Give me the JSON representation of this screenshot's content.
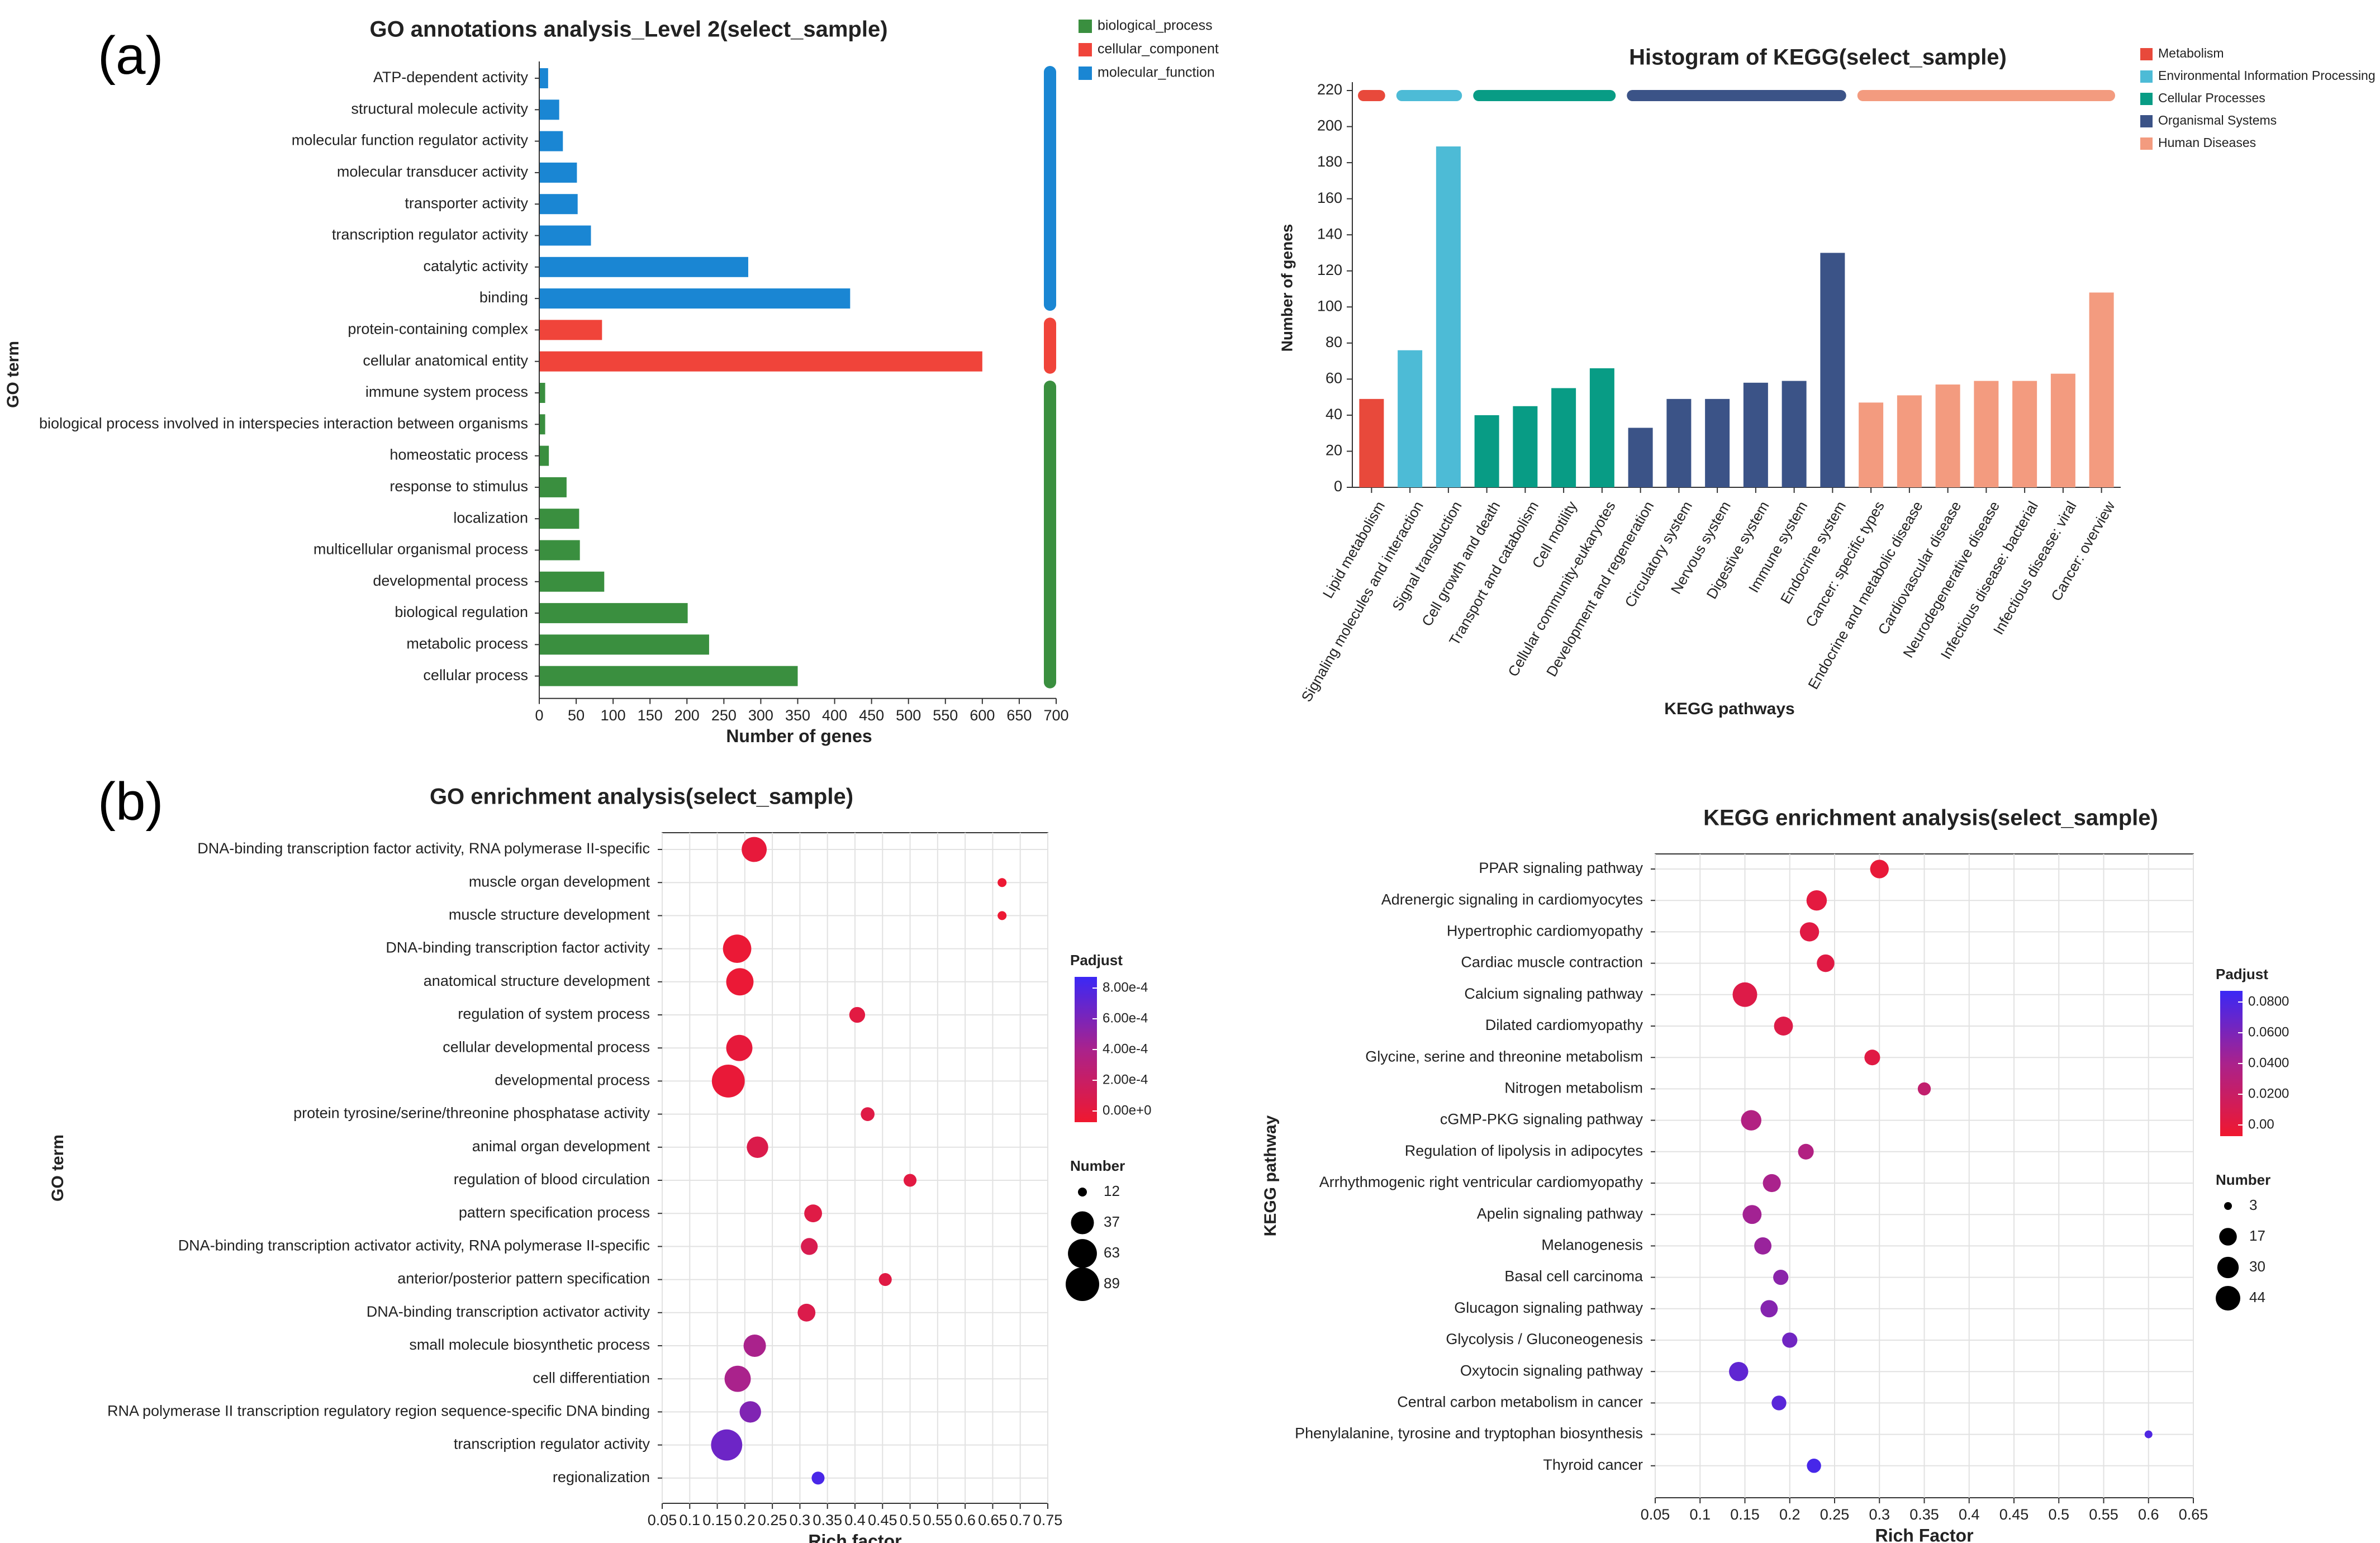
{
  "panel_labels": {
    "a": "(a)",
    "b": "(b)"
  },
  "chart_data": [
    {
      "type": "bar",
      "orientation": "horizontal",
      "title": "GO annotations analysis_Level 2(select_sample)",
      "xlabel": "Number of genes",
      "ylabel": "GO term",
      "xlim": [
        0,
        700
      ],
      "xticks": [
        0,
        50,
        100,
        150,
        200,
        250,
        300,
        350,
        400,
        450,
        500,
        550,
        600,
        650,
        700
      ],
      "legend": [
        {
          "name": "biological_process",
          "color": "#3a8f3f"
        },
        {
          "name": "cellular_component",
          "color": "#f0443a"
        },
        {
          "name": "molecular_function",
          "color": "#1a86d3"
        }
      ],
      "categories": [
        "ATP-dependent activity",
        "structural molecule activity",
        "molecular function regulator activity",
        "molecular transducer activity",
        "transporter activity",
        "transcription regulator activity",
        "catalytic activity",
        "binding",
        "protein-containing complex",
        "cellular anatomical entity",
        "immune system process",
        "biological process involved in interspecies interaction between organisms",
        "homeostatic process",
        "response to stimulus",
        "localization",
        "multicellular organismal process",
        "developmental process",
        "biological regulation",
        "metabolic process",
        "cellular process"
      ],
      "values": [
        12,
        27,
        32,
        51,
        52,
        70,
        283,
        421,
        85,
        600,
        8,
        8,
        13,
        37,
        54,
        55,
        88,
        201,
        230,
        350
      ],
      "groups": [
        "molecular_function",
        "molecular_function",
        "molecular_function",
        "molecular_function",
        "molecular_function",
        "molecular_function",
        "molecular_function",
        "molecular_function",
        "cellular_component",
        "cellular_component",
        "biological_process",
        "biological_process",
        "biological_process",
        "biological_process",
        "biological_process",
        "biological_process",
        "biological_process",
        "biological_process",
        "biological_process",
        "biological_process"
      ]
    },
    {
      "type": "bar",
      "title": "Histogram of KEGG(select_sample)",
      "xlabel": "KEGG pathways",
      "ylabel": "Number of genes",
      "ylim": [
        0,
        220
      ],
      "yticks": [
        0,
        20,
        40,
        60,
        80,
        100,
        120,
        140,
        160,
        180,
        200,
        220
      ],
      "legend": [
        {
          "name": "Metabolism",
          "color": "#e8493b"
        },
        {
          "name": "Environmental Information Processing",
          "color": "#4dbbd6"
        },
        {
          "name": "Cellular Processes",
          "color": "#089c85"
        },
        {
          "name": "Organismal Systems",
          "color": "#3b5387"
        },
        {
          "name": "Human Diseases",
          "color": "#f39b7f"
        }
      ],
      "categories": [
        "Lipid metabolism",
        "Signaling molecules and interaction",
        "Signal transduction",
        "Cell growth and death",
        "Transport and catabolism",
        "Cell motility",
        "Cellular community-eukaryotes",
        "Development and regeneration",
        "Circulatory system",
        "Nervous system",
        "Digestive system",
        "Immune system",
        "Endocrine system",
        "Cancer: specific types",
        "Endocrine and metabolic disease",
        "Cardiovascular disease",
        "Neurodegenerative disease",
        "Infectious disease: bacterial",
        "Infectious disease: viral",
        "Cancer: overview"
      ],
      "values": [
        49,
        76,
        189,
        40,
        45,
        55,
        66,
        33,
        49,
        49,
        58,
        59,
        130,
        47,
        51,
        57,
        59,
        59,
        63,
        108
      ],
      "groups": [
        "Metabolism",
        "Environmental Information Processing",
        "Environmental Information Processing",
        "Cellular Processes",
        "Cellular Processes",
        "Cellular Processes",
        "Cellular Processes",
        "Organismal Systems",
        "Organismal Systems",
        "Organismal Systems",
        "Organismal Systems",
        "Organismal Systems",
        "Organismal Systems",
        "Human Diseases",
        "Human Diseases",
        "Human Diseases",
        "Human Diseases",
        "Human Diseases",
        "Human Diseases",
        "Human Diseases"
      ]
    },
    {
      "type": "scatter",
      "title": "GO enrichment analysis(select_sample)",
      "xlabel": "Rich factor",
      "ylabel": "GO term",
      "xlim": [
        0.05,
        0.75
      ],
      "xticks": [
        "0.05",
        "0.1",
        "0.15",
        "0.2",
        "0.25",
        "0.3",
        "0.35",
        "0.4",
        "0.45",
        "0.5",
        "0.55",
        "0.6",
        "0.65",
        "0.7",
        "0.75"
      ],
      "color_legend": {
        "title": "Padjust",
        "ticks": [
          "8.00e-4",
          "6.00e-4",
          "4.00e-4",
          "2.00e-4",
          "0.00e+0"
        ],
        "min": 0,
        "max": 0.0008
      },
      "size_legend": {
        "title": "Number",
        "values": [
          "12",
          "37",
          "63",
          "89"
        ]
      },
      "categories": [
        "DNA-binding transcription factor activity, RNA polymerase II-specific",
        "muscle organ development",
        "muscle structure development",
        "DNA-binding transcription factor activity",
        "anatomical structure development",
        "regulation of system process",
        "cellular developmental process",
        "developmental process",
        "protein tyrosine/serine/threonine phosphatase activity",
        "animal organ development",
        "regulation of blood circulation",
        "pattern specification process",
        "DNA-binding transcription activator activity, RNA polymerase II-specific",
        "anterior/posterior pattern specification",
        "DNA-binding transcription activator activity",
        "small molecule biosynthetic process",
        "cell differentiation",
        "RNA polymerase II transcription regulatory region sequence-specific DNA binding",
        "transcription regulator activity",
        "regionalization"
      ],
      "x": [
        0.217,
        0.667,
        0.667,
        0.186,
        0.191,
        0.404,
        0.19,
        0.17,
        0.423,
        0.223,
        0.5,
        0.324,
        0.317,
        0.455,
        0.312,
        0.218,
        0.187,
        0.21,
        0.167,
        0.333
      ],
      "sizes": [
        45,
        12,
        12,
        60,
        55,
        18,
        50,
        85,
        15,
        32,
        14,
        22,
        20,
        14,
        22,
        35,
        50,
        32,
        75,
        14
      ],
      "padjust": [
        5e-05,
        2e-05,
        2e-05,
        3e-05,
        3e-05,
        8e-05,
        5e-05,
        4e-05,
        0.0001,
        0.00012,
        8e-05,
        0.0001,
        0.00014,
        9e-05,
        0.00012,
        0.0004,
        0.0004,
        0.00055,
        0.00062,
        0.00075
      ]
    },
    {
      "type": "scatter",
      "title": "KEGG enrichment analysis(select_sample)",
      "xlabel": "Rich Factor",
      "ylabel": "KEGG pathway",
      "xlim": [
        0.05,
        0.65
      ],
      "xticks": [
        "0.05",
        "0.1",
        "0.15",
        "0.2",
        "0.25",
        "0.3",
        "0.35",
        "0.4",
        "0.45",
        "0.5",
        "0.55",
        "0.6",
        "0.65"
      ],
      "color_legend": {
        "title": "Padjust",
        "ticks": [
          "0.0800",
          "0.0600",
          "0.0400",
          "0.0200",
          "0.00"
        ],
        "min": 0,
        "max": 0.09
      },
      "size_legend": {
        "title": "Number",
        "values": [
          "3",
          "17",
          "30",
          "44"
        ]
      },
      "categories": [
        "PPAR signaling pathway",
        "Adrenergic signaling in cardiomyocytes",
        "Hypertrophic cardiomyopathy",
        "Cardiac muscle contraction",
        "Calcium signaling pathway",
        "Dilated cardiomyopathy",
        "Glycine, serine and threonine metabolism",
        "Nitrogen metabolism",
        "cGMP-PKG signaling pathway",
        "Regulation of lipolysis in adipocytes",
        "Arrhythmogenic right ventricular cardiomyopathy",
        "Apelin signaling pathway",
        "Melanogenesis",
        "Basal cell carcinoma",
        "Glucagon signaling pathway",
        "Glycolysis / Gluconeogenesis",
        "Oxytocin signaling pathway",
        "Central carbon metabolism in cancer",
        "Phenylalanine, tyrosine and tryptophan biosynthesis",
        "Thyroid cancer"
      ],
      "x": [
        0.3,
        0.23,
        0.222,
        0.24,
        0.15,
        0.193,
        0.292,
        0.35,
        0.157,
        0.218,
        0.18,
        0.158,
        0.17,
        0.19,
        0.177,
        0.2,
        0.143,
        0.188,
        0.6,
        0.227
      ],
      "sizes": [
        20,
        26,
        22,
        17,
        44,
        21,
        12,
        7,
        26,
        12,
        18,
        21,
        16,
        11,
        16,
        11,
        22,
        10,
        3,
        9
      ],
      "padjust": [
        0.005,
        0.008,
        0.01,
        0.01,
        0.012,
        0.012,
        0.01,
        0.03,
        0.04,
        0.04,
        0.045,
        0.048,
        0.052,
        0.058,
        0.06,
        0.068,
        0.075,
        0.078,
        0.082,
        0.085
      ]
    }
  ]
}
